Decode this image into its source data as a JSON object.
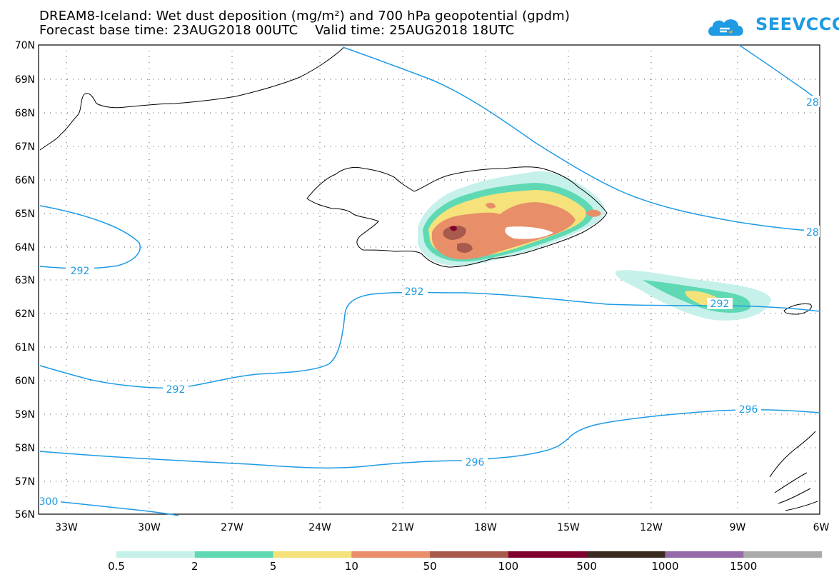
{
  "title_line1": "DREAM8-Iceland: Wet dust deposition (mg/m²) and 700 hPa geopotential (gpdm)",
  "title_line2": "Forecast base time: 23AUG2018 00UTC    Valid time: 25AUG2018 18UTC",
  "logo_text": "SEEVCCC",
  "lat_labels": [
    "70N",
    "69N",
    "68N",
    "67N",
    "66N",
    "65N",
    "64N",
    "63N",
    "62N",
    "61N",
    "60N",
    "59N",
    "58N",
    "57N",
    "56N"
  ],
  "lon_labels": [
    "33W",
    "30W",
    "27W",
    "24W",
    "21W",
    "18W",
    "15W",
    "12W",
    "9W",
    "6W"
  ],
  "contour_labels": [
    "292",
    "292",
    "292",
    "292",
    "296",
    "296",
    "300",
    "28",
    "28"
  ],
  "colorbar": {
    "labels": [
      "0.5",
      "2",
      "5",
      "10",
      "50",
      "100",
      "500",
      "1000",
      "1500"
    ],
    "colors": [
      "#c6f1ea",
      "#5ed9b4",
      "#f5e27b",
      "#e88f6a",
      "#a85a4c",
      "#800030",
      "#3a2a20",
      "#946aa8",
      "#aaaaaa"
    ]
  },
  "chart_data": {
    "type": "heatmap",
    "title": "DREAM8-Iceland: Wet dust deposition (mg/m²) and 700 hPa geopotential (gpdm)",
    "xlabel": "",
    "ylabel": "",
    "xlim": [
      "33W",
      "6W"
    ],
    "ylim": [
      "56N",
      "70N"
    ],
    "grid": true,
    "contour_levels_gpdm": [
      292,
      296,
      300
    ],
    "color_levels_mg_m2": [
      0.5,
      2,
      5,
      10,
      50,
      100,
      500,
      1000,
      1500
    ]
  }
}
